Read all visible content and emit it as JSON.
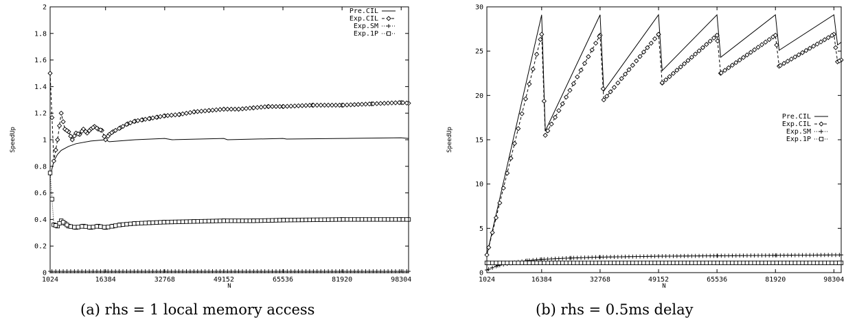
{
  "chart_data": [
    {
      "type": "line",
      "caption": "(a) rhs = 1 local memory access",
      "xlabel": "N",
      "ylabel": "SpeedUp",
      "xlim": [
        1024,
        100352
      ],
      "ylim": [
        0,
        2
      ],
      "xticks": [
        "1024",
        "16384",
        "32768",
        "49152",
        "65536",
        "81920",
        "98304"
      ],
      "yticks": [
        "0",
        "0.2",
        "0.4",
        "0.6",
        "0.8",
        "1",
        "1.2",
        "1.4",
        "1.6",
        "1.8",
        "2"
      ],
      "legend_position": "top-right",
      "series": [
        {
          "name": "Pre.CIL",
          "style": "solid",
          "marker": "none",
          "x": [
            1024,
            2048,
            3072,
            4096,
            6144,
            8192,
            12288,
            16384,
            17408,
            24576,
            32768,
            34816,
            49152,
            50176,
            65536,
            66560,
            81920,
            82944,
            98304,
            100352
          ],
          "y": [
            0.72,
            0.84,
            0.89,
            0.92,
            0.95,
            0.97,
            0.99,
            1.0,
            0.985,
            1.0,
            1.01,
            1.0,
            1.01,
            1.0,
            1.01,
            1.005,
            1.01,
            1.01,
            1.015,
            1.01
          ]
        },
        {
          "name": "Exp.CIL",
          "style": "dashed",
          "marker": "diamond",
          "x": [
            1024,
            2048,
            3072,
            4096,
            5120,
            6144,
            7168,
            8192,
            9216,
            10240,
            11264,
            12288,
            13312,
            14336,
            15360,
            16384,
            17408,
            18432,
            20480,
            22528,
            24576,
            26624,
            28672,
            30720,
            32768,
            36864,
            40960,
            45056,
            49152,
            53248,
            57344,
            61440,
            65536,
            73728,
            81920,
            90112,
            98304,
            100352
          ],
          "y": [
            1.5,
            0.84,
            1.0,
            1.2,
            1.08,
            1.06,
            1.0,
            1.05,
            1.04,
            1.08,
            1.05,
            1.08,
            1.1,
            1.08,
            1.07,
            1.0,
            1.04,
            1.06,
            1.09,
            1.12,
            1.14,
            1.15,
            1.16,
            1.17,
            1.18,
            1.19,
            1.21,
            1.22,
            1.23,
            1.23,
            1.24,
            1.25,
            1.25,
            1.26,
            1.26,
            1.27,
            1.28,
            1.275
          ]
        },
        {
          "name": "Exp.SM",
          "style": "dotted",
          "marker": "plus",
          "x": [
            1024,
            100352
          ],
          "y": [
            0.01,
            0.01
          ]
        },
        {
          "name": "Exp.1P",
          "style": "dotted",
          "marker": "square",
          "x": [
            1024,
            2048,
            3072,
            4096,
            5120,
            6144,
            8192,
            10240,
            12288,
            14336,
            16384,
            18432,
            20480,
            24576,
            28672,
            32768,
            40960,
            49152,
            57344,
            65536,
            81920,
            98304,
            100352
          ],
          "y": [
            0.75,
            0.36,
            0.35,
            0.39,
            0.37,
            0.35,
            0.34,
            0.35,
            0.34,
            0.35,
            0.34,
            0.35,
            0.36,
            0.37,
            0.375,
            0.38,
            0.385,
            0.39,
            0.39,
            0.395,
            0.4,
            0.4,
            0.4
          ]
        }
      ]
    },
    {
      "type": "line",
      "caption": "(b) rhs = 0.5ms delay",
      "xlabel": "N",
      "ylabel": "SpeedUp",
      "xlim": [
        1024,
        100352
      ],
      "ylim": [
        0,
        30
      ],
      "xticks": [
        "1024",
        "16384",
        "32768",
        "49152",
        "65536",
        "81920",
        "98304"
      ],
      "yticks": [
        "0",
        "5",
        "10",
        "15",
        "20",
        "25",
        "30"
      ],
      "legend_position": "right",
      "series": [
        {
          "name": "Pre.CIL",
          "style": "solid",
          "marker": "none",
          "x": [
            1024,
            16384,
            17408,
            32768,
            33792,
            49152,
            50176,
            65536,
            66560,
            81920,
            82944,
            98304,
            99328,
            100352
          ],
          "y": [
            2.0,
            29.1,
            16.0,
            29.1,
            20.5,
            29.1,
            22.8,
            29.1,
            24.3,
            29.1,
            25.1,
            29.1,
            25.7,
            26.0
          ]
        },
        {
          "name": "Exp.CIL",
          "style": "dashed",
          "marker": "diamond",
          "x": [
            1024,
            16384,
            17408,
            32768,
            33792,
            49152,
            50176,
            65536,
            66560,
            81920,
            82944,
            98304,
            99328,
            100352
          ],
          "y": [
            2.0,
            26.9,
            15.5,
            26.8,
            19.5,
            26.9,
            21.4,
            26.8,
            22.5,
            26.8,
            23.3,
            26.9,
            23.8,
            24.0
          ]
        },
        {
          "name": "Exp.SM",
          "style": "dotted",
          "marker": "plus",
          "x": [
            1024,
            4096,
            8192,
            12288,
            16384,
            24576,
            32768,
            49152,
            65536,
            81920,
            100352
          ],
          "y": [
            0.3,
            0.8,
            1.1,
            1.35,
            1.5,
            1.65,
            1.75,
            1.85,
            1.9,
            1.95,
            2.0
          ]
        },
        {
          "name": "Exp.1P",
          "style": "dotted",
          "marker": "square",
          "x": [
            1024,
            100352
          ],
          "y": [
            1.1,
            1.1
          ]
        }
      ]
    }
  ]
}
